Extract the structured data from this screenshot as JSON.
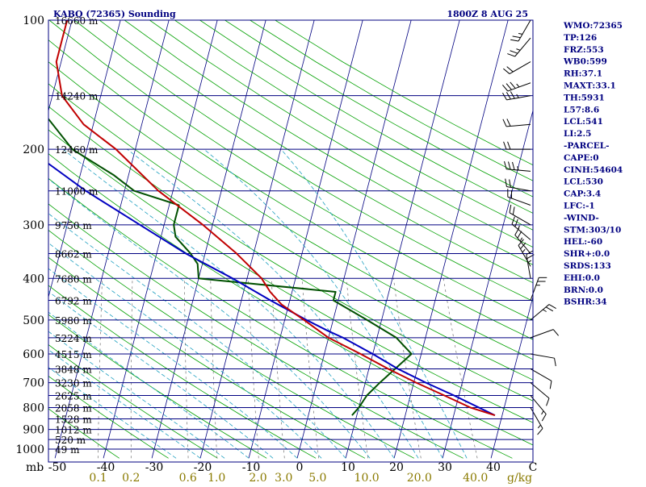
{
  "header": {
    "station": "KABQ (72365) Sounding",
    "datetime": "1800Z  8 AUG 25"
  },
  "stats": [
    "WMO:72365",
    "TP:126",
    "FRZ:553",
    "WB0:599",
    "RH:37.1",
    "MAXT:33.1",
    "TH:5931",
    "L57:8.6",
    "LCL:541",
    "LI:2.5",
    "-PARCEL-",
    "CAPE:0",
    "CINH:54604",
    "LCL:530",
    "CAP:3.4",
    "LFC:-1",
    "-WIND-",
    "STM:303/10",
    "HEL:-60",
    "SHR+:0.0",
    "SRDS:133",
    "EHI:0.0",
    "BRN:0.0",
    "BSHR:34"
  ],
  "colors": {
    "isobar": "#000080",
    "isotherm": "#000080",
    "dry_adiabat": "#00a000",
    "moist_adiabat": "#20a0c0",
    "mixing_ratio": "#707070",
    "temperature": "#c00000",
    "dewpoint": "#005000",
    "parcel": "#0000c0",
    "mixing_label": "#8a7a00"
  },
  "chart_data": {
    "type": "skew-t",
    "xlabel_unit": "mb",
    "mr_unit": "g/kg",
    "xlim": [
      -50,
      50
    ],
    "ylim": [
      1000,
      100
    ],
    "pressure_labels": [
      "100",
      "200",
      "300",
      "400",
      "500",
      "600",
      "700",
      "800",
      "900",
      "1000"
    ],
    "temp_ticks": [
      "-50",
      "-40",
      "-30",
      "-20",
      "-10",
      "0",
      "10",
      "20",
      "30",
      "40",
      "C"
    ],
    "mixing_ratio_labels": [
      "0.1",
      "0.2",
      "0.6",
      "1.0",
      "2.0",
      "3.0",
      "5.0",
      "10.0",
      "20.0",
      "40.0"
    ],
    "height_labels": [
      {
        "p": 100,
        "text": "16660 m"
      },
      {
        "p": 150,
        "text": "14240 m"
      },
      {
        "p": 200,
        "text": "12460 m"
      },
      {
        "p": 250,
        "text": "11000 m"
      },
      {
        "p": 300,
        "text": "9750 m"
      },
      {
        "p": 350,
        "text": "8662 m"
      },
      {
        "p": 400,
        "text": "7680 m"
      },
      {
        "p": 450,
        "text": "6792 m"
      },
      {
        "p": 500,
        "text": "5980 m"
      },
      {
        "p": 550,
        "text": "5224 m"
      },
      {
        "p": 600,
        "text": "4515 m"
      },
      {
        "p": 650,
        "text": "3848 m"
      },
      {
        "p": 700,
        "text": "3230 m"
      },
      {
        "p": 750,
        "text": "2625 m"
      },
      {
        "p": 800,
        "text": "2058 m"
      },
      {
        "p": 850,
        "text": "1528 m"
      },
      {
        "p": 900,
        "text": "1012 m"
      },
      {
        "p": 950,
        "text": "520 m"
      },
      {
        "p": 1000,
        "text": "49 m"
      }
    ],
    "temperature": [
      [
        834,
        38.5
      ],
      [
        800,
        33
      ],
      [
        750,
        27
      ],
      [
        700,
        20.5
      ],
      [
        650,
        14
      ],
      [
        600,
        7.5
      ],
      [
        550,
        0
      ],
      [
        500,
        -6
      ],
      [
        460,
        -11.5
      ],
      [
        430,
        -14.5
      ],
      [
        400,
        -17
      ],
      [
        350,
        -23.5
      ],
      [
        300,
        -32
      ],
      [
        250,
        -43
      ],
      [
        200,
        -54
      ],
      [
        175,
        -62
      ],
      [
        150,
        -68
      ],
      [
        125,
        -71
      ],
      [
        110,
        -71
      ],
      [
        100,
        -71
      ]
    ],
    "dewpoint": [
      [
        834,
        9
      ],
      [
        800,
        10
      ],
      [
        750,
        11
      ],
      [
        700,
        13
      ],
      [
        600,
        18
      ],
      [
        550,
        14
      ],
      [
        500,
        7
      ],
      [
        450,
        -1
      ],
      [
        430,
        -1
      ],
      [
        400,
        -30
      ],
      [
        370,
        -31
      ],
      [
        350,
        -33
      ],
      [
        320,
        -37
      ],
      [
        300,
        -38
      ],
      [
        270,
        -38
      ],
      [
        250,
        -48
      ],
      [
        230,
        -53
      ],
      [
        200,
        -63
      ],
      [
        160,
        -72
      ],
      [
        150,
        -77
      ],
      [
        130,
        -78
      ],
      [
        110,
        -82
      ],
      [
        100,
        -85
      ]
    ],
    "parcel": [
      [
        834,
        38.5
      ],
      [
        750,
        29
      ],
      [
        700,
        22.5
      ],
      [
        650,
        16
      ],
      [
        600,
        10
      ],
      [
        550,
        3
      ],
      [
        530,
        -0.5
      ],
      [
        500,
        -5.5
      ],
      [
        450,
        -14
      ],
      [
        400,
        -23
      ],
      [
        350,
        -34
      ],
      [
        300,
        -45
      ],
      [
        250,
        -58
      ],
      [
        200,
        -72
      ],
      [
        150,
        -90
      ],
      [
        120,
        -105
      ]
    ]
  }
}
